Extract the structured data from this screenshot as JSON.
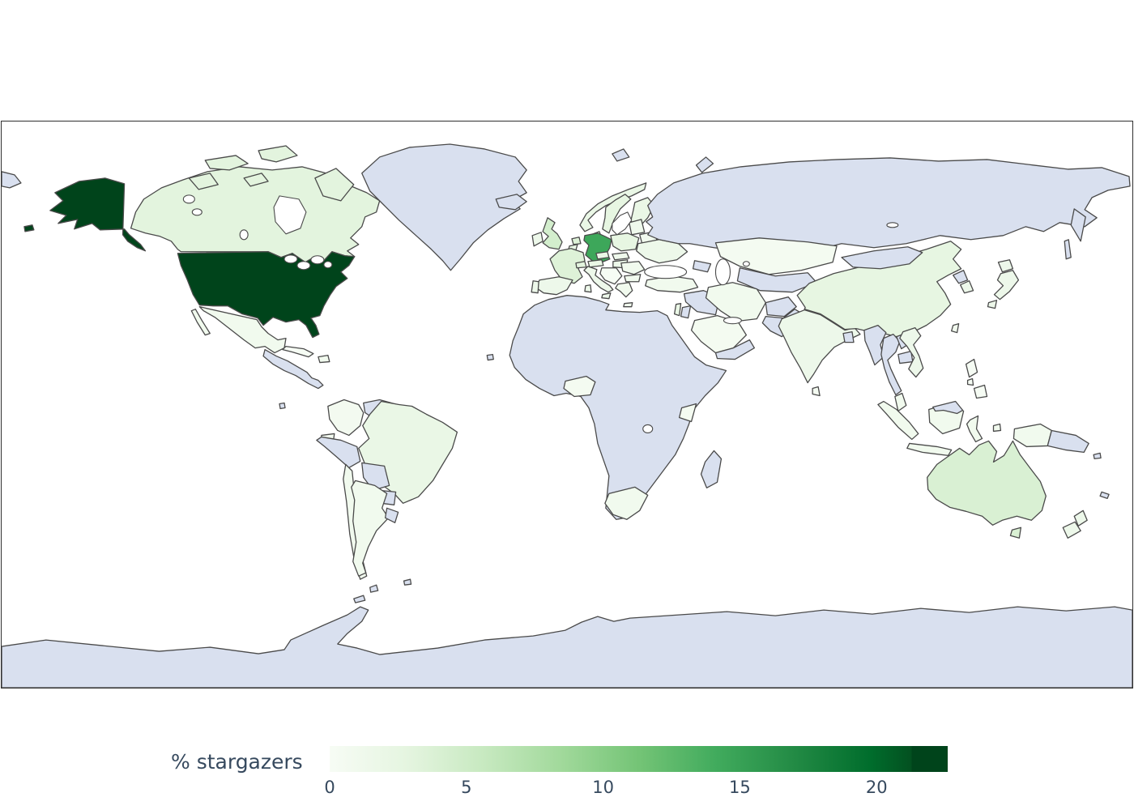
{
  "figure": {
    "legend_label": "% stargazers",
    "colorbar": {
      "vmin": 0,
      "vmax": 22.6,
      "tick_labels": [
        "0",
        "5",
        "10",
        "15",
        "20"
      ],
      "tick_values": [
        0,
        5,
        10,
        15,
        20
      ],
      "colormap": "Greens",
      "css_stops": [
        "#f7fcf5 0%",
        "#e5f5e0 12.5%",
        "#c7e9c0 25%",
        "#a1d99b 37.5%",
        "#74c476 50%",
        "#41ab5d 62.5%",
        "#238b45 75%",
        "#006d2c 87.5%",
        "#035020 94.2%",
        "#00441b 94.2%",
        "#00441b 100%"
      ]
    },
    "colors": {
      "ocean": "#ffffff",
      "no_data": "#d9e0ef",
      "country_border": "#4a4a4a",
      "map_frame": "#2f2f2f",
      "label_text": "#36495e"
    }
  },
  "chart_data": {
    "type": "choropleth",
    "title": "",
    "legend_label": "% stargazers",
    "unit": "percent of stargazers per country",
    "colorbar_range": [
      0,
      22.6
    ],
    "colormap": "Greens (white to dark green); countries with no data shown in light blue-gray",
    "values": {
      "United States": 22.6,
      "Germany": 14.5,
      "United Kingdom": 4.5,
      "Australia": 4,
      "Netherlands": 3.5,
      "France": 3.5,
      "Canada": 3,
      "Switzerland": 3,
      "Sweden": 2.5,
      "Poland": 2.5,
      "China": 2.5,
      "Austria": 2,
      "Czechia": 2,
      "Belgium": 2,
      "Denmark": 2,
      "Norway": 2,
      "Finland": 2,
      "Brazil": 2,
      "Israel": 2,
      "Spain": 1.5,
      "Italy": 1.5,
      "India": 1.5,
      "Japan": 1.5,
      "Ukraine": 1.5,
      "South Korea": 1.5,
      "Vietnam": 1.5,
      "Ireland": 1.5,
      "Portugal": 1.5,
      "New Zealand": 1.5,
      "Hungary": 1.5,
      "Slovakia": 1.2,
      "Baltic States": 1.2,
      "Belarus": 1,
      "Romania": 1,
      "Bulgaria": 1,
      "Greece": 1,
      "Turkey": 1,
      "Iran": 1,
      "Mexico": 1,
      "Argentina": 1,
      "Chile": 1,
      "South Africa": 1,
      "Indonesia": 1,
      "Malaysia": 1,
      "Taiwan": 1,
      "Dominican Republic": 1,
      "Colombia": 0.7,
      "Ecuador": 0.7,
      "Kazakhstan": 0.5,
      "Saudi Arabia": 0.5,
      "Nigeria": 0.5,
      "Kenya": 0.5,
      "Sri Lanka": 0.5,
      "Philippines": 0.2,
      "Cuba": 0.2,
      "Western Balkans": 0.1
    },
    "no_data_regions": [
      "Russia",
      "Greenland",
      "Iceland",
      "Mongolia",
      "North Korea",
      "Myanmar",
      "Thailand",
      "Laos",
      "Cambodia",
      "Pakistan",
      "Afghanistan",
      "Central Asia",
      "Iraq & Syria",
      "Jordan",
      "Yemen & Oman",
      "Most of Africa",
      "Madagascar",
      "Venezuela",
      "Guyanas",
      "Peru",
      "Bolivia",
      "Paraguay",
      "Uruguay",
      "Central America",
      "Papua New Guinea",
      "Caucasus",
      "Antarctica"
    ]
  }
}
